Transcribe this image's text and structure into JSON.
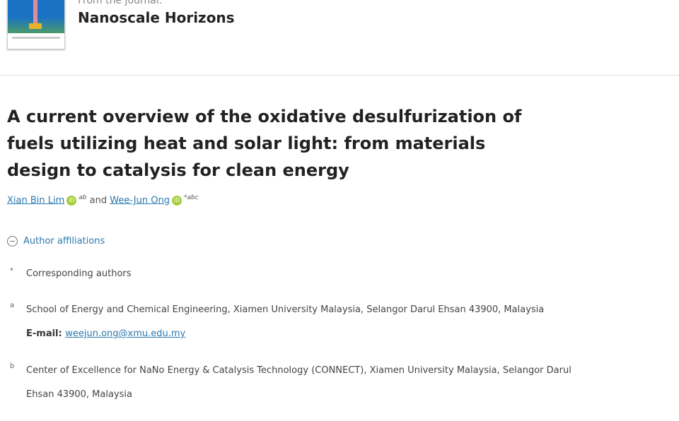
{
  "journal": {
    "from_label": "From the journal:",
    "name": "Nanoscale Horizons"
  },
  "article": {
    "title": "A current overview of the oxidative desulfurization of fuels utilizing heat and solar light: from materials design to catalysis for clean energy"
  },
  "authors": [
    {
      "name": "Xian Bin Lim",
      "sup": "ab"
    },
    {
      "name": "Wee-Jun Ong",
      "sup": "*abc"
    }
  ],
  "authors_joiner": "and",
  "orcid_label": "iD",
  "affiliations": {
    "toggle_label": "Author affiliations",
    "corresponding_marker": "*",
    "corresponding_label": "Corresponding authors",
    "items": [
      {
        "marker": "a",
        "text": "School of Energy and Chemical Engineering, Xiamen University Malaysia, Selangor Darul Ehsan 43900, Malaysia",
        "email_label": "E-mail:",
        "email": "weejun.ong@xmu.edu.my"
      },
      {
        "marker": "b",
        "line1": "Center of Excellence for NaNo Energy & Catalysis Technology (CONNECT), Xiamen University Malaysia, Selangor Darul",
        "line2": "Ehsan 43900, Malaysia"
      }
    ]
  }
}
